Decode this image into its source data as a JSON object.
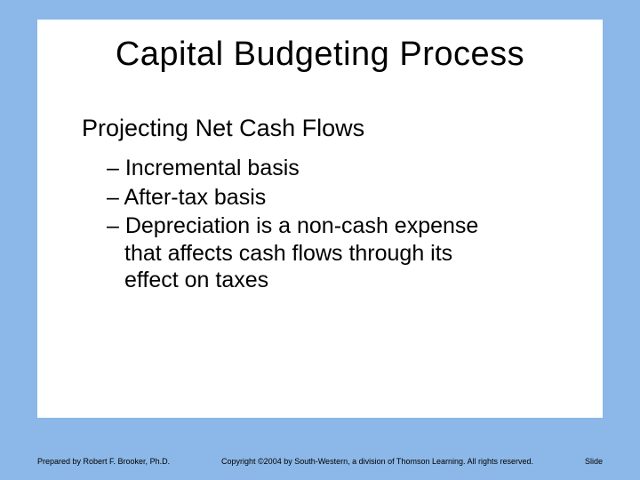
{
  "slide": {
    "background_color": "#8bb8e8",
    "content_background_color": "#ffffff",
    "title": "Capital Budgeting Process",
    "title_fontsize": 38,
    "title_color": "#000000",
    "subtitle": "Projecting Net Cash Flows",
    "subtitle_fontsize": 27,
    "bullets": [
      "– Incremental basis",
      "– After-tax basis",
      "– Depreciation is a non-cash expense that affects cash flows through its effect on taxes"
    ],
    "bullet_fontsize": 25,
    "footer": {
      "left": "Prepared by Robert F. Brooker, Ph.D.",
      "center": "Copyright ©2004 by South-Western, a division of Thomson Learning. All rights reserved.",
      "right": "Slide",
      "fontsize": 9
    }
  }
}
